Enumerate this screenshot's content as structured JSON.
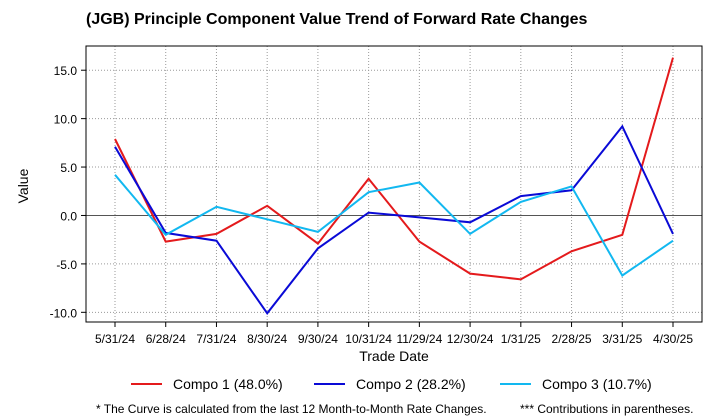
{
  "chart_data": {
    "type": "line",
    "title": "(JGB)  Principle Component Value Trend of Forward Rate Changes",
    "xlabel": "Trade Date",
    "ylabel": "Value",
    "categories": [
      "5/31/24",
      "6/28/24",
      "7/31/24",
      "8/30/24",
      "9/30/24",
      "10/31/24",
      "11/29/24",
      "12/30/24",
      "1/31/25",
      "2/28/25",
      "3/31/25",
      "4/30/25"
    ],
    "yticks": [
      15.0,
      10.0,
      5.0,
      0.0,
      -5.0,
      -10.0
    ],
    "ytick_labels": [
      "15.0",
      "10.0",
      "5.0",
      "0.0",
      "-5.0",
      "-10.0"
    ],
    "ylim": [
      -11.0,
      17.5
    ],
    "grid": true,
    "legend_position": "bottom",
    "series": [
      {
        "name": "Compo 1 (48.0%)",
        "color": "#e41a1c",
        "values": [
          7.9,
          -2.7,
          -1.9,
          1.0,
          -2.9,
          3.8,
          -2.7,
          -6.0,
          -6.6,
          -3.7,
          -2.0,
          16.3
        ]
      },
      {
        "name": "Compo 2 (28.2%)",
        "color": "#0a0ad6",
        "values": [
          7.1,
          -1.8,
          -2.6,
          -10.1,
          -3.4,
          0.3,
          -0.2,
          -0.7,
          2.0,
          2.6,
          9.2,
          -1.9
        ]
      },
      {
        "name": "Compo 3 (10.7%)",
        "color": "#12b8f0",
        "values": [
          4.2,
          -2.0,
          0.9,
          -0.4,
          -1.7,
          2.4,
          3.4,
          -1.9,
          1.4,
          3.0,
          -6.2,
          -2.6
        ]
      }
    ],
    "footnotes": [
      "* The Curve is calculated from the last 12 Month-to-Month Rate Changes.",
      "*** Contributions in parentheses."
    ]
  }
}
